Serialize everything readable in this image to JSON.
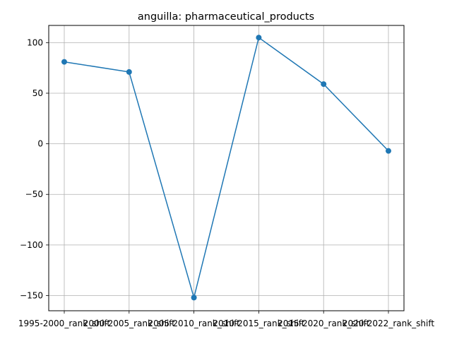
{
  "chart_data": {
    "type": "line",
    "title": "anguilla: pharmaceutical_products",
    "xlabel": "",
    "ylabel": "",
    "categories": [
      "1995-2000_rank_shift",
      "2000-2005_rank_shift",
      "2005-2010_rank_shift",
      "2010-2015_rank_shift",
      "2015-2020_rank_shift",
      "2020-2022_rank_shift"
    ],
    "series": [
      {
        "values": [
          81,
          71,
          -152,
          105,
          59,
          -7
        ]
      }
    ],
    "ylim": [
      -165,
      117
    ],
    "yticks": [
      100,
      50,
      0,
      -50,
      -100,
      -150
    ],
    "grid": true,
    "line_color": "#1f77b4"
  }
}
